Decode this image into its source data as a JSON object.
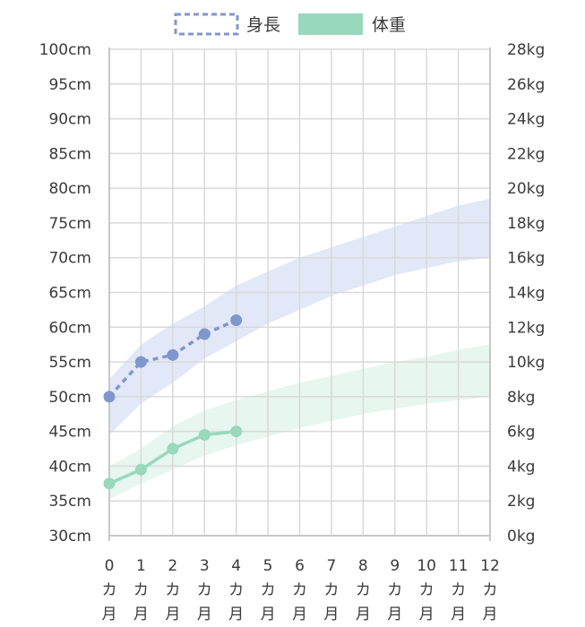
{
  "chart_data": {
    "type": "line",
    "legend": {
      "placement": "top-center",
      "items": [
        {
          "label": "身長",
          "color": "#7f97cc",
          "style": "dashed"
        },
        {
          "label": "体重",
          "color": "#98d8bd",
          "style": "solid"
        }
      ]
    },
    "x": {
      "values": [
        0,
        1,
        2,
        3,
        4,
        5,
        6,
        7,
        8,
        9,
        10,
        11,
        12
      ],
      "tick_labels": [
        [
          "0",
          "カ",
          "月"
        ],
        [
          "1",
          "カ",
          "月"
        ],
        [
          "2",
          "カ",
          "月"
        ],
        [
          "3",
          "カ",
          "月"
        ],
        [
          "4",
          "カ",
          "月"
        ],
        [
          "5",
          "カ",
          "月"
        ],
        [
          "6",
          "カ",
          "月"
        ],
        [
          "7",
          "カ",
          "月"
        ],
        [
          "8",
          "カ",
          "月"
        ],
        [
          "9",
          "カ",
          "月"
        ],
        [
          "10",
          "カ",
          "月"
        ],
        [
          "11",
          "カ",
          "月"
        ],
        [
          "12",
          "カ",
          "月"
        ]
      ],
      "range": [
        0,
        12
      ]
    },
    "y_left": {
      "range": [
        30,
        100
      ],
      "ticks": [
        "30cm",
        "35cm",
        "40cm",
        "45cm",
        "50cm",
        "55cm",
        "60cm",
        "65cm",
        "70cm",
        "75cm",
        "80cm",
        "85cm",
        "90cm",
        "95cm",
        "100cm"
      ]
    },
    "y_right": {
      "range": [
        0,
        28
      ],
      "ticks": [
        "0kg",
        "2kg",
        "4kg",
        "6kg",
        "8kg",
        "10kg",
        "12kg",
        "14kg",
        "16kg",
        "18kg",
        "20kg",
        "22kg",
        "24kg",
        "26kg",
        "28kg"
      ]
    },
    "grid": true,
    "series": [
      {
        "name": "身長",
        "axis": "left",
        "color": "#7f97cc",
        "dashed": true,
        "x": [
          0,
          1,
          2,
          3,
          4
        ],
        "y": [
          50,
          55,
          56,
          59,
          61
        ]
      },
      {
        "name": "体重",
        "axis": "right",
        "color": "#98d8bd",
        "dashed": false,
        "x": [
          0,
          1,
          2,
          3,
          4
        ],
        "y": [
          3.0,
          3.8,
          5.0,
          5.8,
          6.0
        ]
      }
    ],
    "bands": [
      {
        "axis": "left",
        "color": "#e3e8f8",
        "x": [
          0,
          1,
          2,
          3,
          4,
          5,
          6,
          7,
          8,
          9,
          10,
          11,
          12
        ],
        "lower": [
          44.5,
          49,
          52,
          55.5,
          58,
          60.5,
          62.5,
          64.5,
          66,
          67.5,
          68.5,
          69.5,
          70
        ],
        "upper": [
          52.5,
          57.5,
          60.5,
          63,
          66,
          68,
          70,
          71.5,
          73,
          74.5,
          76,
          77.5,
          78.5
        ]
      },
      {
        "axis": "right",
        "color": "#e7f6ef",
        "x": [
          0,
          1,
          2,
          3,
          4,
          5,
          6,
          7,
          8,
          9,
          10,
          11,
          12
        ],
        "lower": [
          2.1,
          3.0,
          3.8,
          4.6,
          5.2,
          5.7,
          6.2,
          6.6,
          7.0,
          7.3,
          7.6,
          7.8,
          8.0
        ],
        "upper": [
          4.0,
          5.0,
          6.3,
          7.2,
          7.8,
          8.3,
          8.8,
          9.2,
          9.6,
          10.0,
          10.3,
          10.7,
          11.0
        ]
      }
    ]
  }
}
